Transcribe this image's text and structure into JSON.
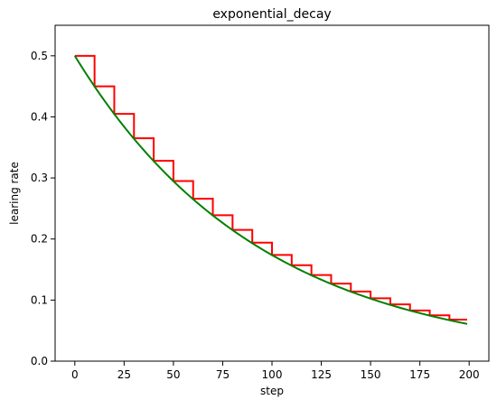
{
  "chart_data": {
    "type": "line",
    "title": "exponential_decay",
    "xlabel": "step",
    "ylabel": "learing rate",
    "xlim": [
      -10,
      210
    ],
    "ylim": [
      0.0,
      0.55
    ],
    "xticks": [
      0,
      25,
      50,
      75,
      100,
      125,
      150,
      175,
      200
    ],
    "yticks": [
      0.0,
      0.1,
      0.2,
      0.3,
      0.4,
      0.5
    ],
    "ytick_labels": [
      "0.0",
      "0.1",
      "0.2",
      "0.3",
      "0.4",
      "0.5"
    ],
    "grid": false,
    "series": [
      {
        "color": "#ff0000",
        "style": "staircase",
        "x": [
          0,
          10,
          20,
          30,
          40,
          50,
          60,
          70,
          80,
          90,
          100,
          110,
          120,
          130,
          140,
          150,
          160,
          170,
          180,
          190,
          199
        ],
        "values": [
          0.5,
          0.45,
          0.405,
          0.365,
          0.328,
          0.295,
          0.266,
          0.239,
          0.215,
          0.194,
          0.174,
          0.157,
          0.141,
          0.127,
          0.114,
          0.103,
          0.093,
          0.083,
          0.075,
          0.068,
          0.068
        ]
      },
      {
        "color": "#008000",
        "style": "smooth",
        "x": [
          0,
          10,
          20,
          30,
          40,
          50,
          60,
          70,
          80,
          90,
          100,
          110,
          120,
          130,
          140,
          150,
          160,
          170,
          180,
          190,
          199
        ],
        "values": [
          0.5,
          0.45,
          0.405,
          0.365,
          0.328,
          0.295,
          0.266,
          0.239,
          0.215,
          0.194,
          0.174,
          0.157,
          0.141,
          0.127,
          0.114,
          0.103,
          0.093,
          0.083,
          0.075,
          0.068,
          0.061
        ]
      }
    ]
  }
}
